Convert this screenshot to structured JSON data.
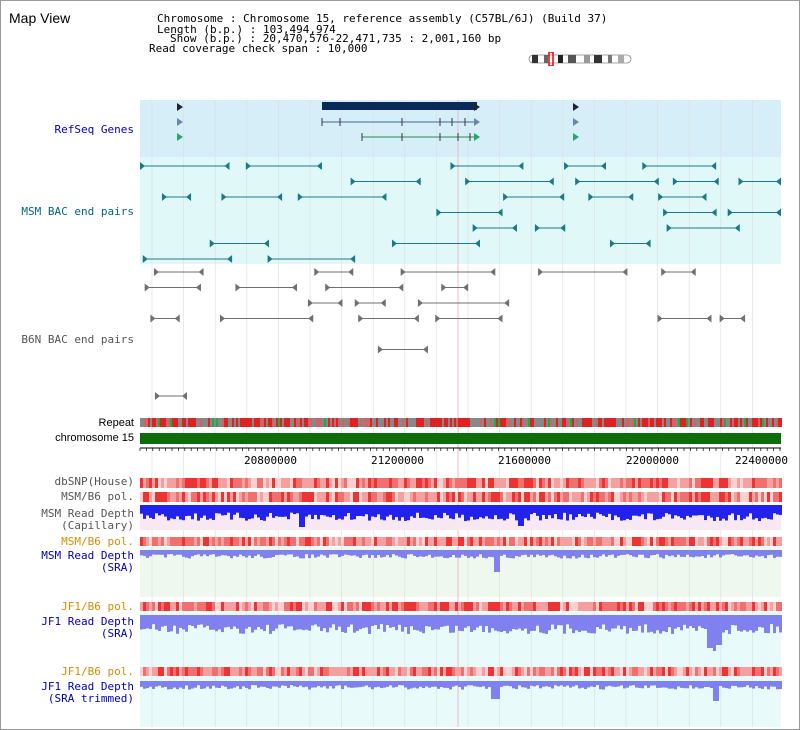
{
  "title": "Map View",
  "info": {
    "line1": "Chromosome    : Chromosome 15, reference assembly (C57BL/6J) (Build 37)",
    "line2": "Length (b.p.) : 103,494,974",
    "line3": "Show (b.p.) : 20,470,576-22,471,735 : 2,001,160 bp",
    "line4": "Read coverage check span : 10,000"
  },
  "tracks": {
    "refseq": "RefSeq Genes",
    "msm_bac": "MSM BAC end pairs",
    "b6n_bac": "B6N BAC end pairs",
    "repeat": "Repeat",
    "chromosome": "chromosome 15",
    "dbsnp": "dbSNP(House)",
    "msm_pol1": "MSM/B6 pol.",
    "msm_depth_cap_1": "MSM Read Depth",
    "msm_depth_cap_2": "(Capillary)",
    "msm_pol2": "MSM/B6 pol.",
    "msm_depth_sra_1": "MSM Read Depth",
    "msm_depth_sra_2": "(SRA)",
    "jf1_pol1": "JF1/B6 pol.",
    "jf1_depth_sra_1": "JF1 Read Depth",
    "jf1_depth_sra_2": "(SRA)",
    "jf1_pol2": "JF1/B6 pol.",
    "jf1_depth_trim_1": "JF1 Read Depth",
    "jf1_depth_trim_2": "(SRA trimmed)"
  },
  "axis_ticks": [
    "20800000",
    "21200000",
    "21600000",
    "22000000",
    "22400000"
  ],
  "colors": {
    "refseq_bg": "#d6eef8",
    "msm_bg": "#e0f8f8",
    "chromosome": "#0b6e0b",
    "depth_blue": "#2222ee",
    "depth_light": "#8080ee",
    "pol_red": "#ee6666"
  }
}
